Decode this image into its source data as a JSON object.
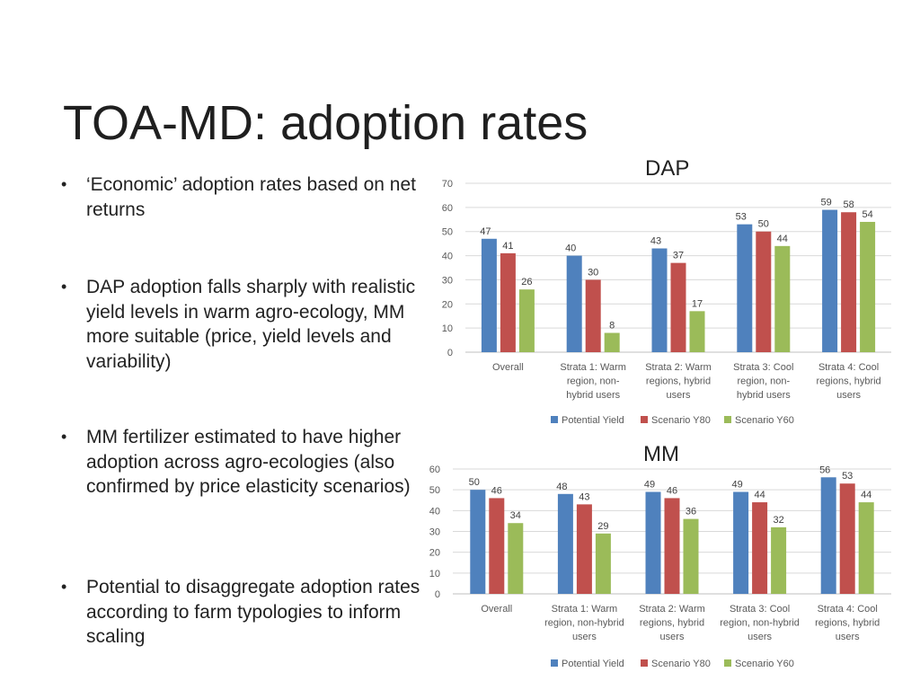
{
  "slide": {
    "title": "TOA-MD: adoption rates",
    "bullets": [
      "‘Economic’ adoption rates based on net returns",
      "DAP adoption falls sharply with realistic yield levels in warm agro-ecology, MM more suitable (price, yield levels and variability)",
      "MM fertilizer estimated to have higher adoption across agro-ecologies (also confirmed by price elasticity scenarios)",
      "Potential to disaggregate adoption rates according to farm typologies to inform scaling"
    ]
  },
  "colors": {
    "potential": "#4f81bd",
    "y80": "#c0504d",
    "y60": "#9bbb59",
    "grid": "#d9d9d9",
    "axis": "#bfbfbf",
    "text": "#595959"
  },
  "chart_data": [
    {
      "type": "bar",
      "title": "DAP",
      "categories": [
        [
          "Overall"
        ],
        [
          "Strata 1: Warm",
          "region, non-",
          "hybrid users"
        ],
        [
          "Strata 2: Warm",
          "regions, hybrid",
          "users"
        ],
        [
          "Strata 3: Cool",
          "region, non-",
          "hybrid users"
        ],
        [
          "Strata 4: Cool",
          "regions, hybrid",
          "users"
        ]
      ],
      "series": [
        {
          "name": "Potential Yield",
          "values": [
            47,
            40,
            43,
            53,
            59
          ]
        },
        {
          "name": "Scenario Y80",
          "values": [
            41,
            30,
            37,
            50,
            58
          ]
        },
        {
          "name": "Scenario Y60",
          "values": [
            26,
            8,
            17,
            44,
            54
          ]
        }
      ],
      "ylim": [
        0,
        70
      ],
      "yticks": [
        0,
        10,
        20,
        30,
        40,
        50,
        60,
        70
      ],
      "grid": true,
      "legend": "bottom"
    },
    {
      "type": "bar",
      "title": "MM",
      "categories": [
        [
          "Overall"
        ],
        [
          "Strata 1: Warm",
          "region, non-hybrid",
          "users"
        ],
        [
          "Strata 2: Warm",
          "regions, hybrid",
          "users"
        ],
        [
          "Strata 3: Cool",
          "region, non-hybrid",
          "users"
        ],
        [
          "Strata 4: Cool",
          "regions, hybrid",
          "users"
        ]
      ],
      "series": [
        {
          "name": "Potential Yield",
          "values": [
            50,
            48,
            49,
            49,
            56
          ]
        },
        {
          "name": "Scenario Y80",
          "values": [
            46,
            43,
            46,
            44,
            53
          ]
        },
        {
          "name": "Scenario Y60",
          "values": [
            34,
            29,
            36,
            32,
            44
          ]
        }
      ],
      "ylim": [
        0,
        60
      ],
      "yticks": [
        0,
        10,
        20,
        30,
        40,
        50,
        60
      ],
      "grid": true,
      "legend": "bottom"
    }
  ]
}
